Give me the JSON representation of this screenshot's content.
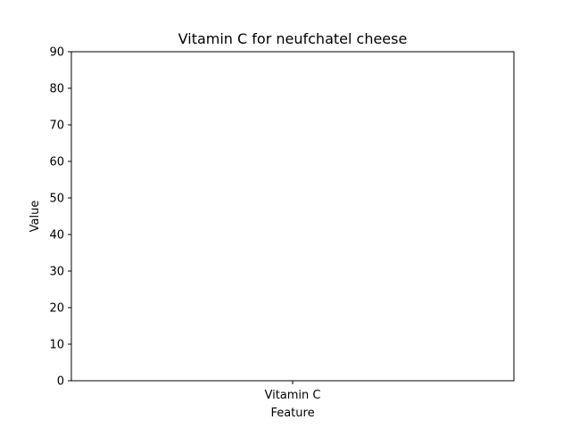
{
  "chart_data": {
    "type": "bar",
    "title": "Vitamin C for neufchatel cheese",
    "xlabel": "Feature",
    "ylabel": "Value",
    "categories": [
      "Vitamin C"
    ],
    "values": [
      0
    ],
    "ylim": [
      0,
      90
    ],
    "yticks": [
      "0",
      "10",
      "20",
      "30",
      "40",
      "50",
      "60",
      "70",
      "80",
      "90"
    ],
    "grid": false,
    "bar_color": "#1f77b4"
  }
}
